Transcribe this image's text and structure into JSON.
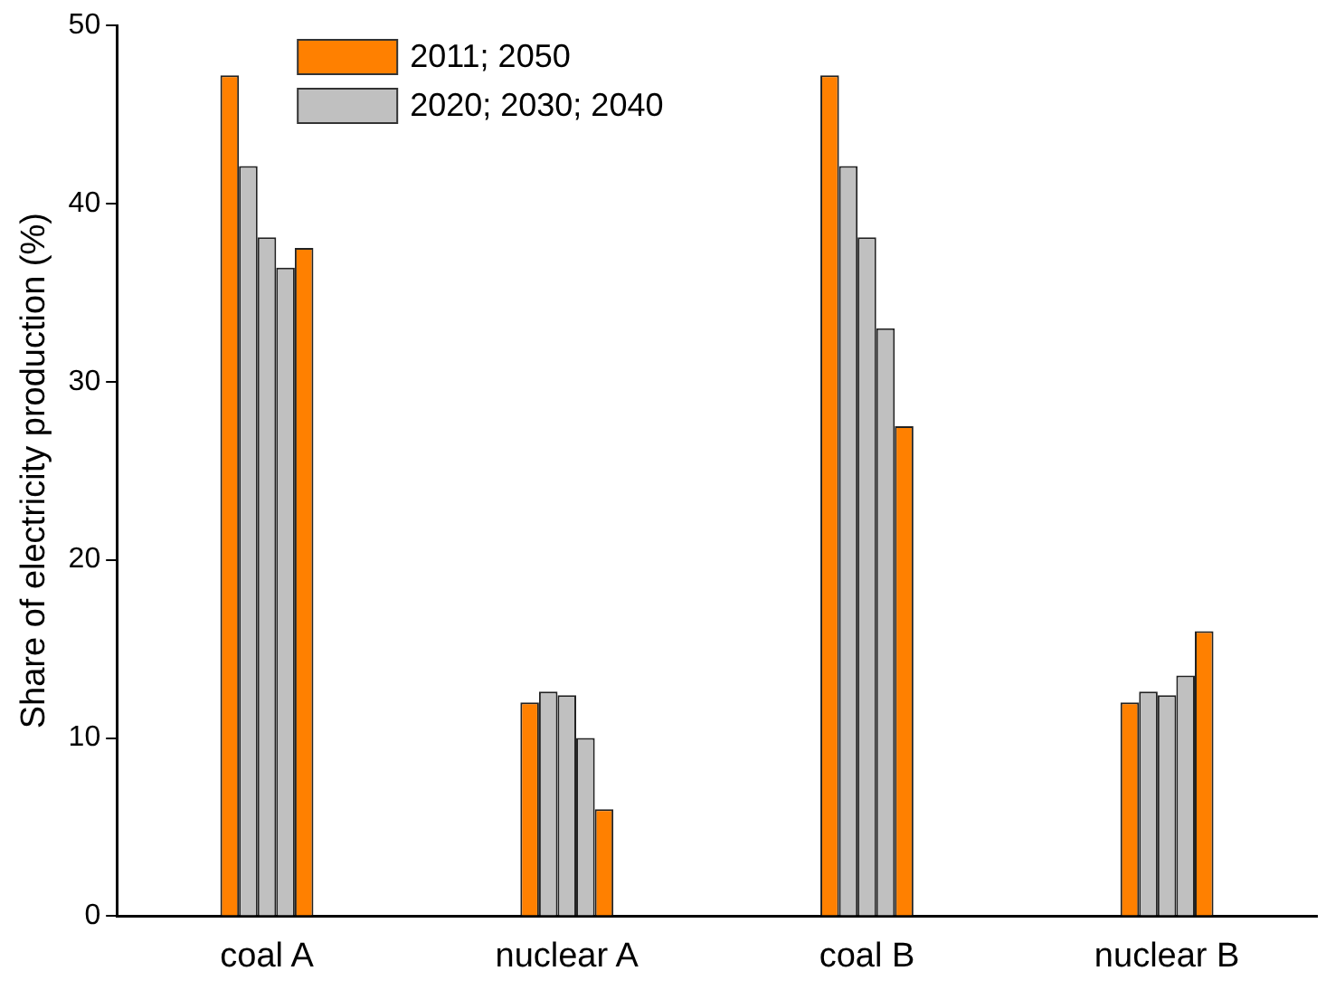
{
  "chart_data": {
    "type": "bar",
    "ylabel": "Share of electricity production (%)",
    "categories": [
      "coal A",
      "nuclear A",
      "coal B",
      "nuclear B"
    ],
    "series": [
      {
        "name": "2011; 2050",
        "color": "#ff8000",
        "values": [
          47.2,
          12.0,
          47.2,
          12.0
        ]
      },
      {
        "name": "2020; 2030; 2040",
        "color": "#c0c0c0",
        "values": [
          42.1,
          12.6,
          42.1,
          12.6
        ]
      },
      {
        "color": "#c0c0c0",
        "values": [
          38.1,
          12.4,
          38.1,
          12.4
        ]
      },
      {
        "color": "#c0c0c0",
        "values": [
          36.4,
          10.0,
          33.0,
          13.5
        ]
      },
      {
        "color": "#ff8000",
        "values": [
          37.5,
          6.0,
          27.5,
          16.0
        ]
      }
    ],
    "ylim": [
      0,
      50
    ],
    "yticks": [
      0,
      10,
      20,
      30,
      40,
      50
    ],
    "grid": false,
    "legend": "top"
  }
}
